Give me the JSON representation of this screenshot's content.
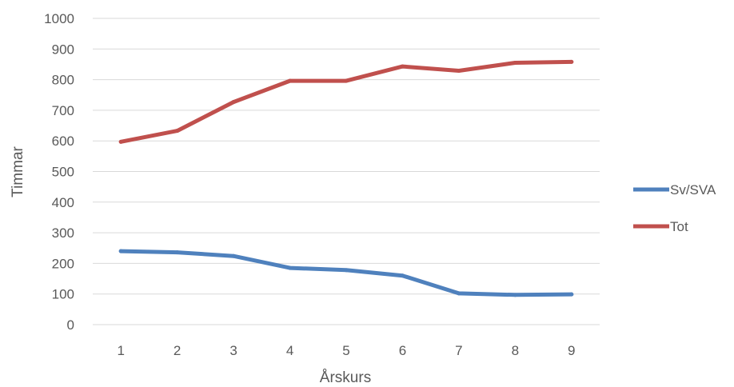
{
  "chart_data": {
    "type": "line",
    "title": "",
    "xlabel": "Årskurs",
    "ylabel": "Timmar",
    "categories": [
      "1",
      "2",
      "3",
      "4",
      "5",
      "6",
      "7",
      "8",
      "9"
    ],
    "ylim": [
      0,
      1000
    ],
    "yticks": [
      0,
      100,
      200,
      300,
      400,
      500,
      600,
      700,
      800,
      900,
      1000
    ],
    "grid": "horizontal",
    "legend_position": "right",
    "series": [
      {
        "name": "Sv/SVA",
        "color": "#4f81bd",
        "values": [
          240,
          236,
          224,
          185,
          178,
          160,
          102,
          97,
          99
        ]
      },
      {
        "name": "Tot",
        "color": "#c0504d",
        "values": [
          597,
          633,
          727,
          796,
          796,
          843,
          829,
          855,
          858
        ]
      }
    ]
  }
}
